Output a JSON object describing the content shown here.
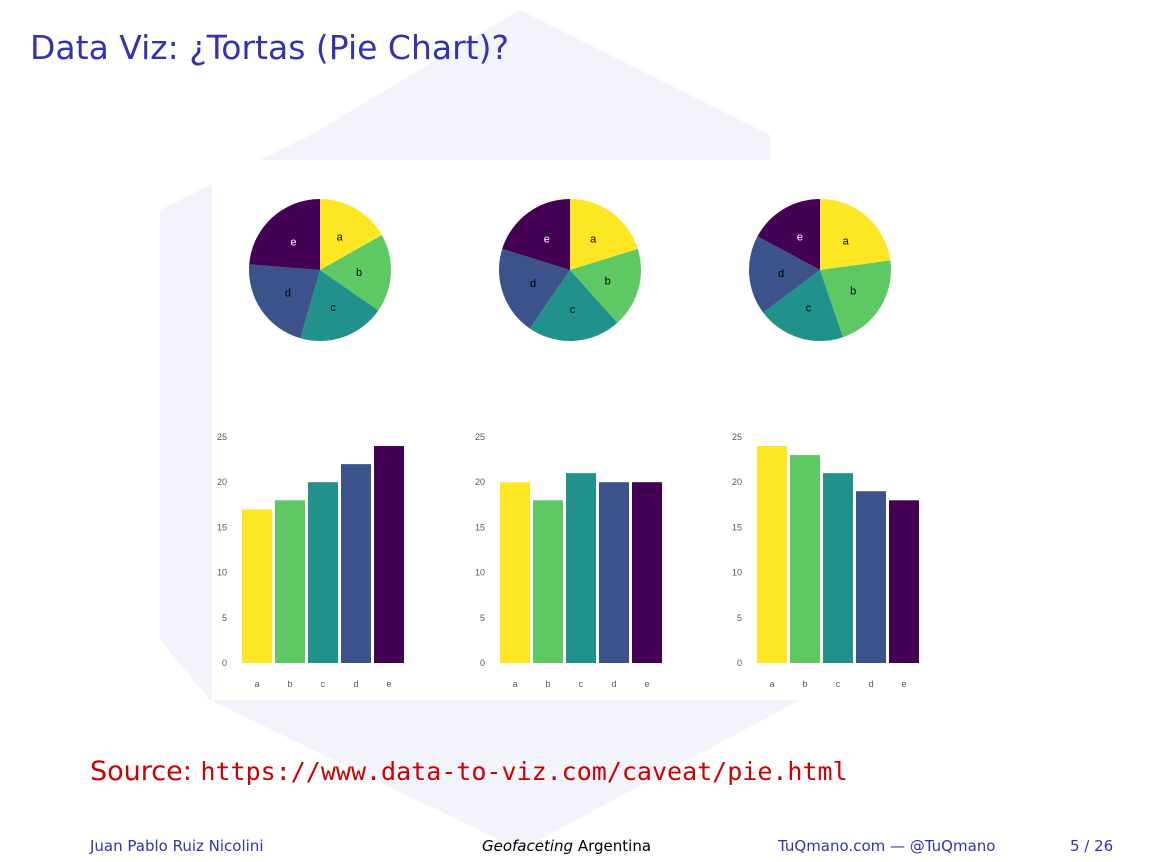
{
  "slide": {
    "title": "Data Viz: ¿Tortas (Pie Chart)?",
    "source_label": "Source:",
    "source_url": "https://www.data-to-viz.com/caveat/pie.html",
    "footer": {
      "author": "Juan Pablo Ruiz Nicolini",
      "topic_italic": "Geofaceting",
      "topic_rest": "Argentina",
      "site": "TuQmano.com — @TuQmano",
      "page": "5 / 26"
    }
  },
  "colors": {
    "title": "#3333b2",
    "source": "#cc0000",
    "a": "#fde725",
    "b": "#5ec962",
    "c": "#21918c",
    "d": "#3b528b",
    "e": "#440154"
  },
  "chart_data": [
    {
      "type": "pie",
      "categories": [
        "a",
        "b",
        "c",
        "d",
        "e"
      ],
      "values": [
        17,
        18,
        20,
        22,
        24
      ]
    },
    {
      "type": "pie",
      "categories": [
        "a",
        "b",
        "c",
        "d",
        "e"
      ],
      "values": [
        20,
        18,
        21,
        20,
        20
      ]
    },
    {
      "type": "pie",
      "categories": [
        "a",
        "b",
        "c",
        "d",
        "e"
      ],
      "values": [
        24,
        23,
        21,
        19,
        18
      ]
    },
    {
      "type": "bar",
      "categories": [
        "a",
        "b",
        "c",
        "d",
        "e"
      ],
      "values": [
        17,
        18,
        20,
        22,
        24
      ],
      "ylim": [
        0,
        25
      ],
      "yticks": [
        0,
        5,
        10,
        15,
        20,
        25
      ]
    },
    {
      "type": "bar",
      "categories": [
        "a",
        "b",
        "c",
        "d",
        "e"
      ],
      "values": [
        20,
        18,
        21,
        20,
        20
      ],
      "ylim": [
        0,
        25
      ],
      "yticks": [
        0,
        5,
        10,
        15,
        20,
        25
      ]
    },
    {
      "type": "bar",
      "categories": [
        "a",
        "b",
        "c",
        "d",
        "e"
      ],
      "values": [
        24,
        23,
        21,
        19,
        18
      ],
      "ylim": [
        0,
        25
      ],
      "yticks": [
        0,
        5,
        10,
        15,
        20,
        25
      ]
    }
  ]
}
